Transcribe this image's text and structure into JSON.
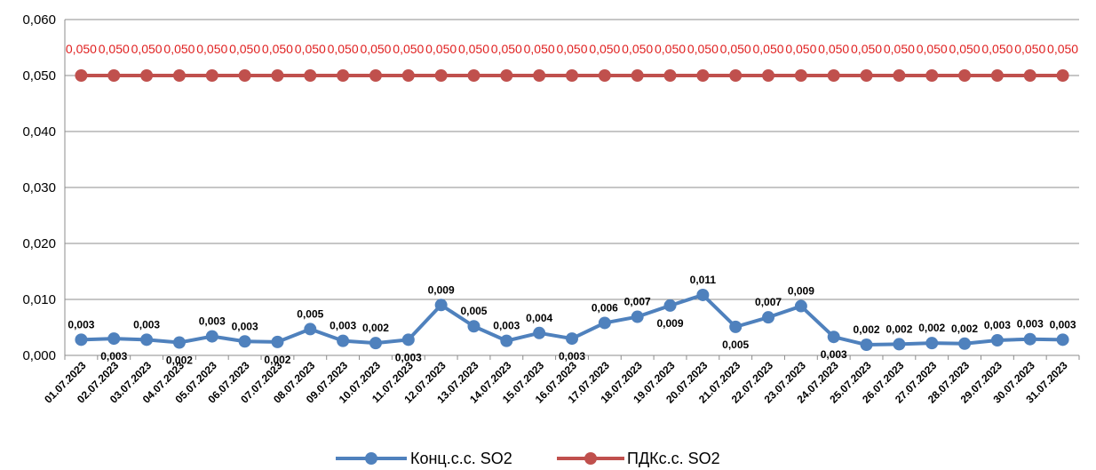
{
  "chart_data": {
    "type": "line",
    "categories": [
      "01.07.2023",
      "02.07.2023",
      "03.07.2023",
      "04.07.2023",
      "05.07.2023",
      "06.07.2023",
      "07.07.2023",
      "08.07.2023",
      "09.07.2023",
      "10.07.2023",
      "11.07.2023",
      "12.07.2023",
      "13.07.2023",
      "14.07.2023",
      "15.07.2023",
      "16.07.2023",
      "17.07.2023",
      "18.07.2023",
      "19.07.2023",
      "20.07.2023",
      "21.07.2023",
      "22.07.2023",
      "23.07.2023",
      "24.07.2023",
      "25.07.2023",
      "26.07.2023",
      "27.07.2023",
      "28.07.2023",
      "29.07.2023",
      "30.07.2023",
      "31.07.2023"
    ],
    "ylim": [
      0,
      0.06
    ],
    "yticks": [
      "0,000",
      "0,010",
      "0,020",
      "0,030",
      "0,040",
      "0,050",
      "0,060"
    ],
    "grid": true,
    "legend_position": "bottom",
    "series": [
      {
        "name": "Конц.с.с. SO2",
        "color": "#4f81bd",
        "values": [
          0.0028,
          0.003,
          0.0028,
          0.0023,
          0.0034,
          0.0025,
          0.0024,
          0.0047,
          0.0026,
          0.0022,
          0.0028,
          0.009,
          0.0052,
          0.0026,
          0.004,
          0.003,
          0.0058,
          0.0069,
          0.0089,
          0.0108,
          0.0051,
          0.0068,
          0.0088,
          0.0033,
          0.0019,
          0.002,
          0.0022,
          0.0021,
          0.0027,
          0.0029,
          0.0028
        ],
        "labels": [
          "0,003",
          "0,003",
          "0,003",
          "0,002",
          "0,003",
          "0,003",
          "0,002",
          "0,005",
          "0,003",
          "0,002",
          "0,003",
          "0,009",
          "0,005",
          "0,003",
          "0,004",
          "0,003",
          "0,006",
          "0,007",
          "0,009",
          "0,011",
          "0,005",
          "0,007",
          "0,009",
          "0,003",
          "0,002",
          "0,002",
          "0,002",
          "0,002",
          "0,003",
          "0,003",
          "0,003"
        ],
        "label_pos": [
          "above",
          "below",
          "above",
          "below",
          "above",
          "above",
          "below",
          "above",
          "above",
          "above",
          "below",
          "above",
          "above",
          "above",
          "above",
          "below",
          "above",
          "above",
          "below",
          "above",
          "below",
          "above",
          "above",
          "below",
          "above",
          "above",
          "above",
          "above",
          "above",
          "above",
          "above"
        ]
      },
      {
        "name": "ПДКс.с. SO2",
        "color": "#c0504d",
        "values": [
          0.05,
          0.05,
          0.05,
          0.05,
          0.05,
          0.05,
          0.05,
          0.05,
          0.05,
          0.05,
          0.05,
          0.05,
          0.05,
          0.05,
          0.05,
          0.05,
          0.05,
          0.05,
          0.05,
          0.05,
          0.05,
          0.05,
          0.05,
          0.05,
          0.05,
          0.05,
          0.05,
          0.05,
          0.05,
          0.05,
          0.05
        ],
        "labels": [
          "0,050",
          "0,050",
          "0,050",
          "0,050",
          "0,050",
          "0,050",
          "0,050",
          "0,050",
          "0,050",
          "0,050",
          "0,050",
          "0,050",
          "0,050",
          "0,050",
          "0,050",
          "0,050",
          "0,050",
          "0,050",
          "0,050",
          "0,050",
          "0,050",
          "0,050",
          "0,050",
          "0,050",
          "0,050",
          "0,050",
          "0,050",
          "0,050",
          "0,050",
          "0,050",
          "0,050"
        ],
        "label_color": "#e02020"
      }
    ]
  }
}
